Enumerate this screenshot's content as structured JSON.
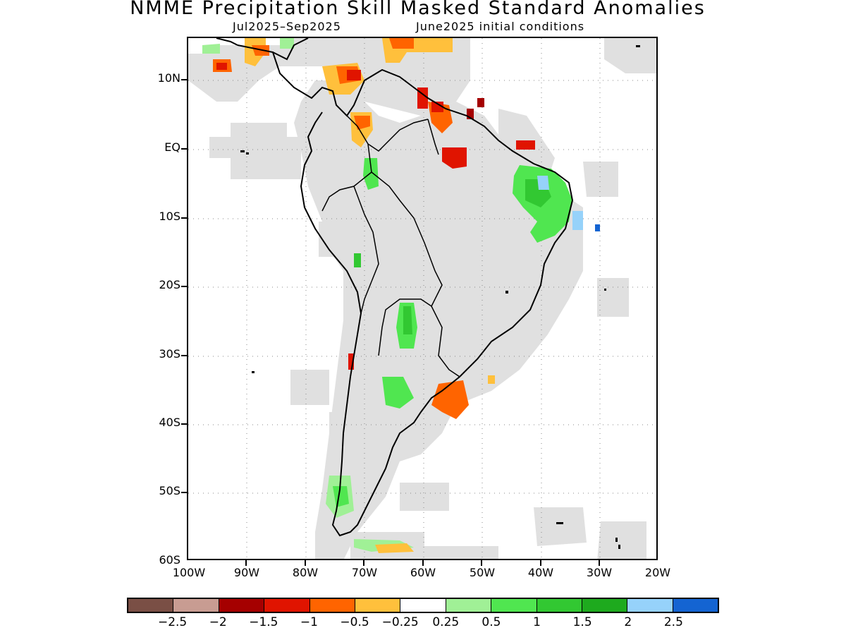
{
  "title": "NMME Precipitation Skill Masked Standard Anomalies",
  "subtitle_left": "Jul2025–Sep2025",
  "subtitle_right": "June2025 initial conditions",
  "lat_labels": [
    "10N",
    "EQ",
    "10S",
    "20S",
    "30S",
    "40S",
    "50S",
    "60S"
  ],
  "lon_labels": [
    "100W",
    "90W",
    "80W",
    "70W",
    "60W",
    "50W",
    "40W",
    "30W",
    "20W"
  ],
  "colorbar": {
    "colors": [
      "#7a4f45",
      "#c89c92",
      "#a50000",
      "#e01400",
      "#ff6400",
      "#ffc03c",
      "#ffffff",
      "#a0f096",
      "#50e650",
      "#32c832",
      "#1eaa1e",
      "#96d2fa",
      "#1464d2"
    ],
    "labels": [
      "−2.5",
      "−2",
      "−1.5",
      "−1",
      "−0.5",
      "−0.25",
      "0.25",
      "0.5",
      "1",
      "1.5",
      "2",
      "2.5"
    ]
  },
  "map": {
    "lon_range": [
      -100,
      -20
    ],
    "lat_range": [
      -60,
      6
    ],
    "mask_color": "#e0e0e0"
  }
}
